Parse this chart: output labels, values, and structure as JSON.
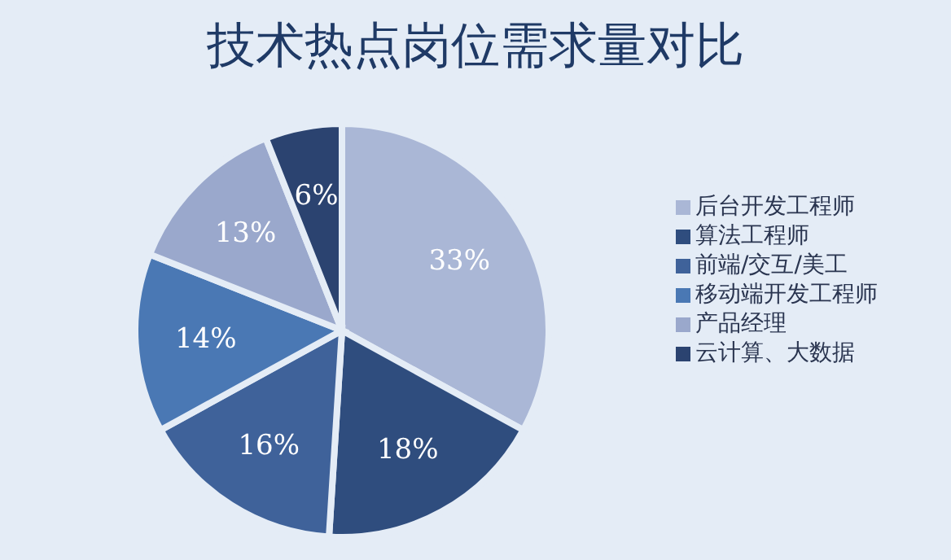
{
  "chart_data": {
    "type": "pie",
    "title": "技术热点岗位需求量对比",
    "categories": [
      "后台开发工程师",
      "算法工程师",
      "前端/交互/美工",
      "移动端开发工程师",
      "产品经理",
      "云计算、大数据"
    ],
    "values": [
      33,
      18,
      16,
      14,
      13,
      6
    ],
    "value_labels": [
      "33%",
      "18%",
      "16%",
      "14%",
      "13%",
      "6%"
    ],
    "colors": [
      "#aab7d6",
      "#2f4d7e",
      "#3f629a",
      "#4a78b4",
      "#9aa8cc",
      "#2b4370"
    ],
    "legend": "right"
  }
}
